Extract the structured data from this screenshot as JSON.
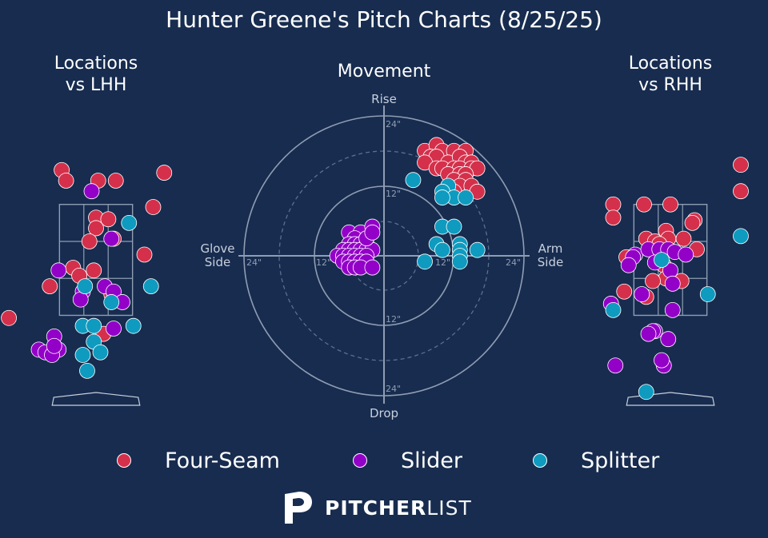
{
  "title": "Hunter Greene's Pitch Charts (8/25/25)",
  "panels": {
    "lhh_title": "Locations\nvs LHH",
    "movement_title": "Movement",
    "rhh_title": "Locations\nvs RHH"
  },
  "movement_axis": {
    "top": "Rise",
    "bottom": "Drop",
    "left": "Glove\nSide",
    "right": "Arm\nSide",
    "ring_labels": [
      "12\"",
      "24\""
    ]
  },
  "legend": [
    {
      "name": "Four-Seam",
      "color": "#d5304b"
    },
    {
      "name": "Slider",
      "color": "#9300c8"
    },
    {
      "name": "Splitter",
      "color": "#0e9bbf"
    }
  ],
  "brand": {
    "bold": "PITCHER",
    "light": "LIST"
  },
  "chart_data": [
    {
      "type": "scatter",
      "title": "Locations vs LHH",
      "xlim": [
        -2.0,
        2.0
      ],
      "ylim": [
        -0.4,
        5.2
      ],
      "strike_zone": {
        "x": [
          -0.83,
          0.83
        ],
        "y": [
          1.5,
          3.6
        ]
      },
      "series": [
        {
          "name": "Four-Seam",
          "points": [
            [
              -0.78,
              4.25
            ],
            [
              -0.68,
              4.05
            ],
            [
              0.05,
              4.05
            ],
            [
              0.45,
              4.05
            ],
            [
              1.55,
              4.2
            ],
            [
              1.3,
              3.55
            ],
            [
              0.0,
              3.35
            ],
            [
              0.0,
              3.15
            ],
            [
              0.28,
              3.32
            ],
            [
              -0.15,
              2.9
            ],
            [
              0.4,
              2.95
            ],
            [
              1.1,
              2.65
            ],
            [
              -0.52,
              2.4
            ],
            [
              -0.38,
              2.25
            ],
            [
              -0.05,
              2.35
            ],
            [
              -1.05,
              2.05
            ],
            [
              0.35,
              1.9
            ],
            [
              -1.98,
              1.45
            ],
            [
              0.17,
              1.15
            ]
          ],
          "color": "#d5304b"
        },
        {
          "name": "Slider",
          "points": [
            [
              -0.1,
              3.85
            ],
            [
              0.35,
              2.95
            ],
            [
              -0.85,
              2.35
            ],
            [
              -0.3,
              1.95
            ],
            [
              0.2,
              2.05
            ],
            [
              0.4,
              1.95
            ],
            [
              0.6,
              1.75
            ],
            [
              -0.35,
              1.8
            ],
            [
              -0.95,
              1.1
            ],
            [
              -1.3,
              0.85
            ],
            [
              -1.15,
              0.8
            ],
            [
              -0.85,
              0.85
            ],
            [
              -1.0,
              0.75
            ],
            [
              0.4,
              1.25
            ],
            [
              -0.95,
              0.92
            ]
          ],
          "color": "#9300c8"
        },
        {
          "name": "Splitter",
          "points": [
            [
              0.75,
              3.25
            ],
            [
              1.25,
              2.05
            ],
            [
              -0.25,
              2.05
            ],
            [
              0.35,
              1.75
            ],
            [
              -0.3,
              1.3
            ],
            [
              -0.05,
              1.3
            ],
            [
              0.85,
              1.3
            ],
            [
              -0.05,
              1.0
            ],
            [
              -0.3,
              0.75
            ],
            [
              0.1,
              0.8
            ],
            [
              -0.2,
              0.45
            ]
          ],
          "color": "#0e9bbf"
        }
      ]
    },
    {
      "type": "scatter",
      "title": "Movement",
      "xlabel": "Glove Side / Arm Side (in)",
      "ylabel": "Drop / Rise (in)",
      "xlim": [
        -30,
        30
      ],
      "ylim": [
        -30,
        30
      ],
      "series": [
        {
          "name": "Four-Seam",
          "points": [
            [
              7,
              18
            ],
            [
              9,
              19
            ],
            [
              10,
              18
            ],
            [
              12,
              18
            ],
            [
              14,
              18
            ],
            [
              8,
              17
            ],
            [
              9,
              17
            ],
            [
              11,
              16
            ],
            [
              13,
              17
            ],
            [
              14,
              16
            ],
            [
              15,
              16
            ],
            [
              7,
              16
            ],
            [
              9,
              15
            ],
            [
              10,
              15
            ],
            [
              12,
              15
            ],
            [
              13,
              15
            ],
            [
              15,
              15
            ],
            [
              16,
              15
            ],
            [
              11,
              14
            ],
            [
              13,
              14
            ],
            [
              14,
              14
            ],
            [
              12,
              13
            ],
            [
              14,
              13
            ],
            [
              13,
              12
            ],
            [
              15,
              12
            ],
            [
              16,
              11
            ],
            [
              12,
              11
            ]
          ],
          "color": "#d5304b"
        },
        {
          "name": "Slider",
          "points": [
            [
              -6,
              4
            ],
            [
              -4,
              4
            ],
            [
              -5,
              3
            ],
            [
              -3,
              3
            ],
            [
              -6,
              2
            ],
            [
              -5,
              2
            ],
            [
              -4,
              2
            ],
            [
              -3,
              2
            ],
            [
              -7,
              1
            ],
            [
              -6,
              1
            ],
            [
              -5,
              1
            ],
            [
              -4,
              1
            ],
            [
              -3,
              1
            ],
            [
              -2,
              1
            ],
            [
              -8,
              0
            ],
            [
              -7,
              0
            ],
            [
              -6,
              0
            ],
            [
              -5,
              0
            ],
            [
              -4,
              0
            ],
            [
              -3,
              0
            ],
            [
              -7,
              -1
            ],
            [
              -6,
              -1
            ],
            [
              -5,
              -1
            ],
            [
              -4,
              -1
            ],
            [
              -3,
              -1
            ],
            [
              -6,
              -2
            ],
            [
              -5,
              -2
            ],
            [
              -4,
              -2
            ],
            [
              -2,
              -2
            ],
            [
              -3,
              3
            ],
            [
              -2,
              5
            ],
            [
              -2,
              4
            ]
          ],
          "color": "#9300c8"
        },
        {
          "name": "Splitter",
          "points": [
            [
              5,
              13
            ],
            [
              11,
              12
            ],
            [
              10,
              11
            ],
            [
              12,
              10
            ],
            [
              10,
              10
            ],
            [
              14,
              10
            ],
            [
              10,
              5
            ],
            [
              12,
              5
            ],
            [
              9,
              2
            ],
            [
              13,
              2
            ],
            [
              13,
              1
            ],
            [
              10,
              1
            ],
            [
              13,
              0
            ],
            [
              16,
              1
            ],
            [
              7,
              -1
            ],
            [
              13,
              -1
            ]
          ],
          "color": "#0e9bbf"
        }
      ]
    },
    {
      "type": "scatter",
      "title": "Locations vs RHH",
      "xlim": [
        -2.0,
        2.0
      ],
      "ylim": [
        -0.4,
        5.2
      ],
      "strike_zone": {
        "x": [
          -0.83,
          0.83
        ],
        "y": [
          1.5,
          3.6
        ]
      },
      "series": [
        {
          "name": "Four-Seam",
          "points": [
            [
              1.6,
              4.35
            ],
            [
              1.6,
              3.85
            ],
            [
              -1.3,
              3.6
            ],
            [
              -1.3,
              3.35
            ],
            [
              -0.6,
              3.6
            ],
            [
              0.0,
              3.6
            ],
            [
              0.55,
              3.3
            ],
            [
              0.5,
              3.25
            ],
            [
              -0.1,
              3.1
            ],
            [
              -0.55,
              2.95
            ],
            [
              -0.35,
              2.9
            ],
            [
              -0.05,
              2.95
            ],
            [
              0.3,
              2.95
            ],
            [
              0.6,
              2.75
            ],
            [
              -0.25,
              2.85
            ],
            [
              -1.0,
              2.6
            ],
            [
              -0.15,
              2.45
            ],
            [
              -0.1,
              2.2
            ],
            [
              -0.4,
              2.15
            ],
            [
              0.25,
              2.15
            ],
            [
              -1.05,
              1.95
            ],
            [
              -0.55,
              1.85
            ]
          ],
          "color": "#d5304b"
        },
        {
          "name": "Slider",
          "points": [
            [
              -0.8,
              2.65
            ],
            [
              -0.5,
              2.75
            ],
            [
              -0.25,
              2.75
            ],
            [
              -0.05,
              2.75
            ],
            [
              -0.85,
              2.6
            ],
            [
              -0.95,
              2.45
            ],
            [
              0.1,
              2.7
            ],
            [
              0.35,
              2.65
            ],
            [
              0.0,
              2.35
            ],
            [
              -0.35,
              2.5
            ],
            [
              0.05,
              2.1
            ],
            [
              -0.65,
              1.9
            ],
            [
              -1.35,
              1.72
            ],
            [
              0.05,
              1.6
            ],
            [
              -0.35,
              1.2
            ],
            [
              -0.4,
              1.2
            ],
            [
              -0.5,
              1.15
            ],
            [
              -0.05,
              1.05
            ],
            [
              -1.25,
              0.55
            ],
            [
              -0.15,
              0.55
            ],
            [
              -0.2,
              0.65
            ]
          ],
          "color": "#9300c8"
        },
        {
          "name": "Splitter",
          "points": [
            [
              1.6,
              3.0
            ],
            [
              -0.2,
              2.55
            ],
            [
              0.85,
              1.9
            ],
            [
              -1.3,
              1.6
            ],
            [
              -0.55,
              0.05
            ]
          ],
          "color": "#0e9bbf"
        }
      ]
    }
  ]
}
